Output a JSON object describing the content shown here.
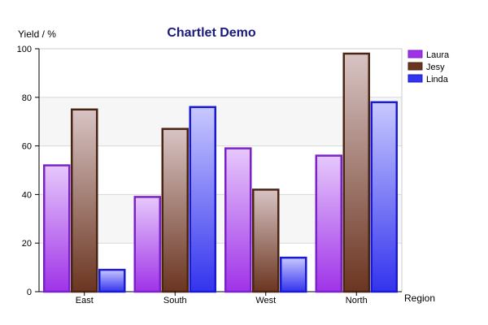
{
  "chart_data": {
    "type": "bar",
    "title": "Chartlet Demo",
    "xlabel": "Region",
    "ylabel": "Yield / %",
    "categories": [
      "East",
      "South",
      "West",
      "North"
    ],
    "ylim": [
      0,
      100
    ],
    "yticks": [
      "0",
      "20",
      "40",
      "60",
      "80",
      "100"
    ],
    "series": [
      {
        "name": "Laura",
        "values": [
          52,
          39,
          59,
          56
        ],
        "color": "#a033e8",
        "light": "#e6c8fb",
        "border": "#7a22c8"
      },
      {
        "name": "Jesy",
        "values": [
          75,
          67,
          42,
          98
        ],
        "color": "#6b3520",
        "light": "#d8c4c4",
        "border": "#4a2414"
      },
      {
        "name": "Linda",
        "values": [
          9,
          76,
          14,
          78
        ],
        "color": "#3333ee",
        "light": "#c8c8ff",
        "border": "#1a1ad0"
      }
    ],
    "grid": true,
    "legend_position": "right"
  }
}
